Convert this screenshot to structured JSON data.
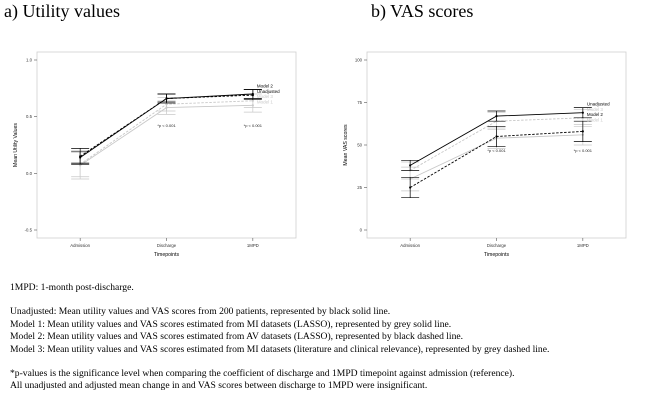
{
  "colors": {
    "unadjusted": "#000000",
    "model1": "#c8c8c8",
    "model2": "#000000",
    "model3": "#c8c8c8",
    "frame": "#cfcfcf"
  },
  "chart_data": [
    {
      "type": "line",
      "title": "a) Utility values",
      "xlabel": "Timepoints",
      "ylabel": "Mean Utility Values",
      "categories": [
        "Admission",
        "Discharge",
        "1MPD"
      ],
      "ylim": [
        -0.5,
        1.0
      ],
      "yticks": [
        "-0.5",
        "0.0",
        "0.5",
        "1.0"
      ],
      "grid": false,
      "series": [
        {
          "name": "Unadjusted",
          "key": "unadjusted",
          "dashed": false,
          "values": [
            0.14,
            0.66,
            0.7
          ],
          "lower": [
            0.09,
            0.63,
            0.66
          ],
          "upper": [
            0.19,
            0.7,
            0.74
          ]
        },
        {
          "name": "Model 1",
          "key": "model1",
          "dashed": false,
          "values": [
            0.07,
            0.58,
            0.6
          ],
          "lower": [
            -0.05,
            0.52,
            0.54
          ],
          "upper": [
            0.2,
            0.64,
            0.66
          ]
        },
        {
          "name": "Model 2",
          "key": "model2",
          "dashed": true,
          "values": [
            0.15,
            0.66,
            0.69
          ],
          "lower": [
            0.08,
            0.62,
            0.65
          ],
          "upper": [
            0.22,
            0.7,
            0.74
          ]
        },
        {
          "name": "Model 3",
          "key": "model3",
          "dashed": true,
          "values": [
            0.08,
            0.61,
            0.64
          ],
          "lower": [
            -0.03,
            0.55,
            0.58
          ],
          "upper": [
            0.19,
            0.67,
            0.7
          ]
        }
      ],
      "labels": [
        "Model 2",
        "Unadjusted",
        "Model 3",
        "Model 1"
      ],
      "annotations": [
        {
          "category": 1,
          "y": 0.41,
          "text": "*p < 0.001"
        },
        {
          "category": 2,
          "y": 0.41,
          "text": "*p < 0.001"
        }
      ]
    },
    {
      "type": "line",
      "title": "b) VAS scores",
      "xlabel": "Timepoints",
      "ylabel": "Mean VAS scores",
      "categories": [
        "Admission",
        "Discharge",
        "1MPD"
      ],
      "ylim": [
        0,
        100
      ],
      "yticks": [
        "0",
        "25",
        "50",
        "75",
        "100"
      ],
      "grid": false,
      "series": [
        {
          "name": "Unadjusted",
          "key": "unadjusted",
          "dashed": false,
          "values": [
            38,
            67,
            69
          ],
          "lower": [
            35,
            64,
            66
          ],
          "upper": [
            41,
            70,
            72
          ]
        },
        {
          "name": "Model 1",
          "key": "model1",
          "dashed": false,
          "values": [
            30,
            54,
            56
          ],
          "lower": [
            23,
            48,
            50
          ],
          "upper": [
            37,
            60,
            62
          ]
        },
        {
          "name": "Model 2",
          "key": "model2",
          "dashed": true,
          "values": [
            25,
            55,
            58
          ],
          "lower": [
            19,
            49,
            52
          ],
          "upper": [
            31,
            61,
            64
          ]
        },
        {
          "name": "Model 3",
          "key": "model3",
          "dashed": true,
          "values": [
            35,
            64,
            66
          ],
          "lower": [
            30,
            59,
            61
          ],
          "upper": [
            40,
            69,
            71
          ]
        }
      ],
      "labels": [
        "Unadjusted",
        "Model 3",
        "Model 2",
        "Model 1"
      ],
      "annotations": [
        {
          "category": 1,
          "y": 46,
          "text": "*p < 0.001"
        },
        {
          "category": 2,
          "y": 46,
          "text": "*p < 0.001"
        }
      ]
    }
  ],
  "notes": {
    "abbrev": "1MPD: 1-month post-discharge.",
    "unadjusted": "Unadjusted: Mean utility values and VAS scores from 200 patients, represented by black solid line.",
    "model1": "Model 1: Mean utility values and VAS scores estimated from MI datasets (LASSO), represented by grey solid line.",
    "model2": "Model 2: Mean utility values and VAS scores estimated from AV datasets (LASSO), represented by black dashed line.",
    "model3": "Model 3: Mean utility values and VAS scores estimated from MI datasets (literature and clinical relevance), represented by grey dashed line.",
    "pvalue": "*p-values is the significance level when comparing the coefficient of discharge and 1MPD timepoint against admission (reference).",
    "insignificant": "All unadjusted and adjusted mean change in and VAS scores between discharge to 1MPD were insignificant."
  }
}
